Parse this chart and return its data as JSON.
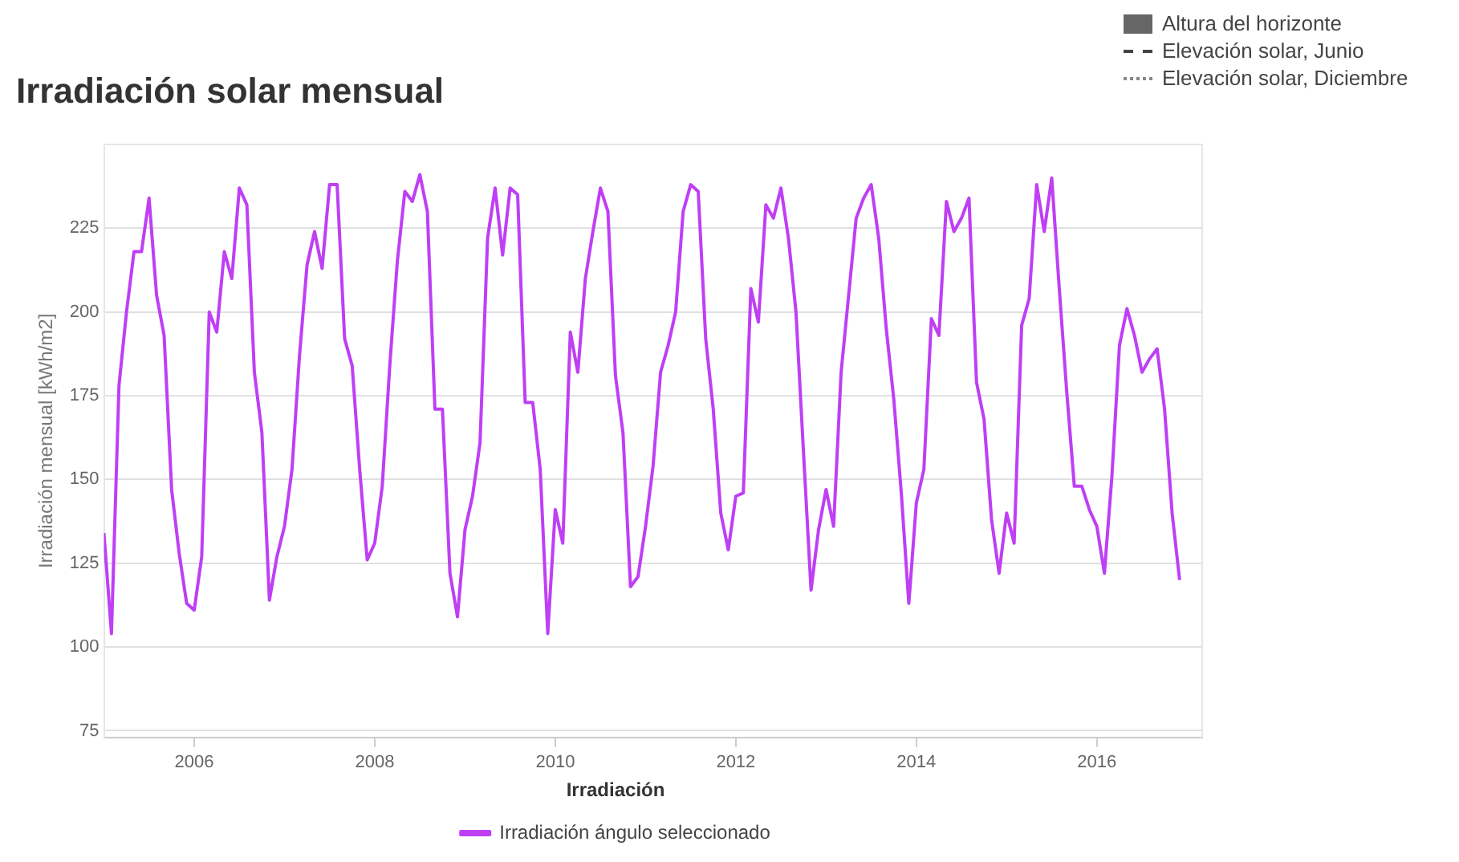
{
  "chart_data": {
    "type": "line",
    "title": "Irradiación solar mensual",
    "ylabel": "Irradiación mensual [kWh/m2]",
    "legend_title": "Irradiación",
    "legend": "bottom",
    "grid": "y",
    "marker": "none",
    "line_style": "solid",
    "annotations": [
      "Altura del horizonte",
      "Elevación solar, Junio",
      "Elevación solar, Diciembre"
    ],
    "xlim": [
      "2005-01",
      "2017-03"
    ],
    "xticks": [
      "2006",
      "2008",
      "2010",
      "2012",
      "2014",
      "2016"
    ],
    "ylim": [
      73,
      250
    ],
    "yticks": [
      75,
      100,
      125,
      150,
      175,
      200,
      225
    ],
    "x": [
      "2005-01",
      "2005-02",
      "2005-03",
      "2005-04",
      "2005-05",
      "2005-06",
      "2005-07",
      "2005-08",
      "2005-09",
      "2005-10",
      "2005-11",
      "2005-12",
      "2006-01",
      "2006-02",
      "2006-03",
      "2006-04",
      "2006-05",
      "2006-06",
      "2006-07",
      "2006-08",
      "2006-09",
      "2006-10",
      "2006-11",
      "2006-12",
      "2007-01",
      "2007-02",
      "2007-03",
      "2007-04",
      "2007-05",
      "2007-06",
      "2007-07",
      "2007-08",
      "2007-09",
      "2007-10",
      "2007-11",
      "2007-12",
      "2008-01",
      "2008-02",
      "2008-03",
      "2008-04",
      "2008-05",
      "2008-06",
      "2008-07",
      "2008-08",
      "2008-09",
      "2008-10",
      "2008-11",
      "2008-12",
      "2009-01",
      "2009-02",
      "2009-03",
      "2009-04",
      "2009-05",
      "2009-06",
      "2009-07",
      "2009-08",
      "2009-09",
      "2009-10",
      "2009-11",
      "2009-12",
      "2010-01",
      "2010-02",
      "2010-03",
      "2010-04",
      "2010-05",
      "2010-06",
      "2010-07",
      "2010-08",
      "2010-09",
      "2010-10",
      "2010-11",
      "2010-12",
      "2011-01",
      "2011-02",
      "2011-03",
      "2011-04",
      "2011-05",
      "2011-06",
      "2011-07",
      "2011-08",
      "2011-09",
      "2011-10",
      "2011-11",
      "2011-12",
      "2012-01",
      "2012-02",
      "2012-03",
      "2012-04",
      "2012-05",
      "2012-06",
      "2012-07",
      "2012-08",
      "2012-09",
      "2012-10",
      "2012-11",
      "2012-12",
      "2013-01",
      "2013-02",
      "2013-03",
      "2013-04",
      "2013-05",
      "2013-06",
      "2013-07",
      "2013-08",
      "2013-09",
      "2013-10",
      "2013-11",
      "2013-12",
      "2014-01",
      "2014-02",
      "2014-03",
      "2014-04",
      "2014-05",
      "2014-06",
      "2014-07",
      "2014-08",
      "2014-09",
      "2014-10",
      "2014-11",
      "2014-12",
      "2015-01",
      "2015-02",
      "2015-03",
      "2015-04",
      "2015-05",
      "2015-06",
      "2015-07",
      "2015-08",
      "2015-09",
      "2015-10",
      "2015-11",
      "2015-12",
      "2016-01",
      "2016-02",
      "2016-03",
      "2016-04",
      "2016-05",
      "2016-06",
      "2016-07",
      "2016-08",
      "2016-09",
      "2016-10",
      "2016-11",
      "2016-12"
    ],
    "series": [
      {
        "name": "Irradiación ángulo seleccionado",
        "color": "#bf3ff5",
        "values": [
          134,
          104,
          178,
          200,
          218,
          218,
          234,
          205,
          193,
          147,
          128,
          113,
          111,
          127,
          200,
          194,
          218,
          210,
          237,
          232,
          182,
          164,
          114,
          127,
          136,
          153,
          187,
          214,
          224,
          213,
          238,
          238,
          192,
          184,
          153,
          126,
          131,
          148,
          184,
          215,
          236,
          233,
          241,
          230,
          171,
          171,
          122,
          109,
          135,
          145,
          161,
          222,
          237,
          217,
          237,
          235,
          173,
          173,
          153,
          104,
          141,
          131,
          194,
          182,
          210,
          224,
          237,
          230,
          181,
          164,
          118,
          121,
          136,
          154,
          182,
          190,
          200,
          230,
          238,
          236,
          192,
          171,
          140,
          129,
          145,
          146,
          207,
          197,
          232,
          228,
          237,
          222,
          200,
          158,
          117,
          135,
          147,
          136,
          182,
          205,
          228,
          234,
          238,
          222,
          195,
          174,
          146,
          113,
          143,
          153,
          198,
          193,
          233,
          224,
          228,
          234,
          179,
          168,
          138,
          122,
          140,
          131,
          196,
          204,
          238,
          224,
          240,
          207,
          176,
          148,
          148,
          141,
          136,
          122,
          151,
          190,
          201,
          193,
          182,
          186,
          189,
          171,
          140,
          120
        ]
      }
    ]
  }
}
